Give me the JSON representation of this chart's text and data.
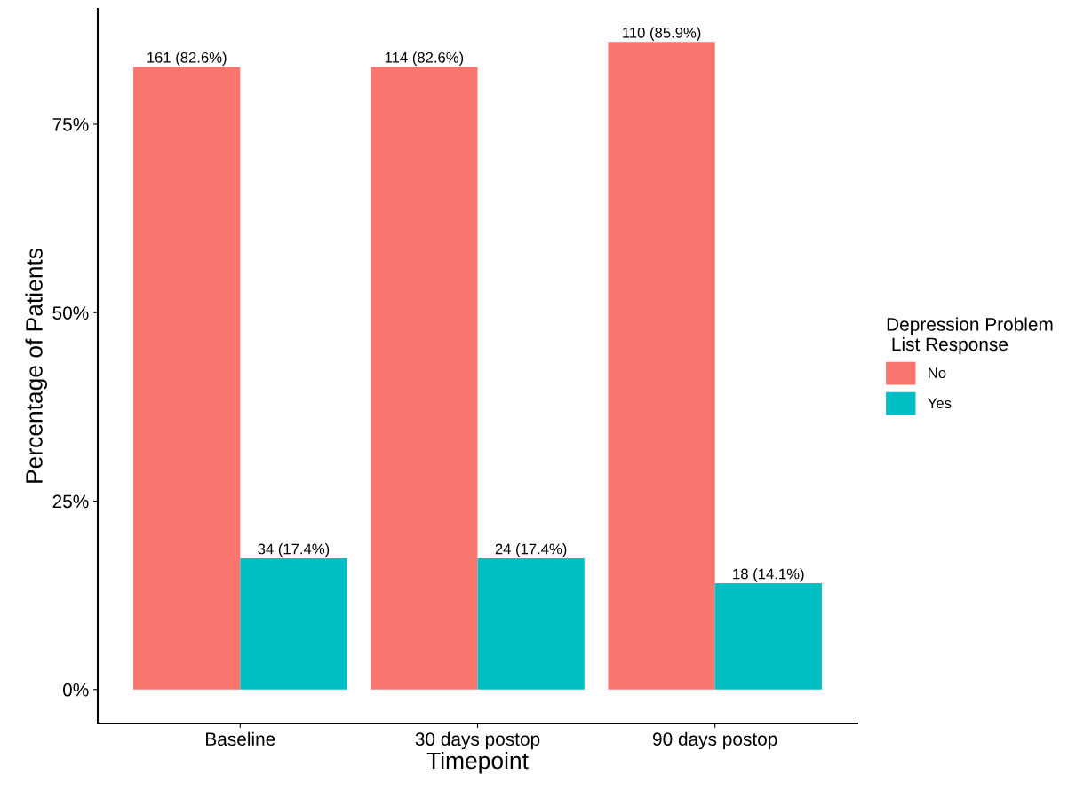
{
  "chart_data": {
    "type": "bar",
    "xlabel": "Timepoint",
    "ylabel": "Percentage of Patients",
    "legend_title": "Depression Problem\n List Response",
    "categories": [
      "Baseline",
      "30 days postop",
      "90 days postop"
    ],
    "series": [
      {
        "name": "No",
        "color": "#f8766d",
        "values": [
          82.6,
          82.6,
          85.9
        ],
        "value_labels": [
          "161 (82.6%)",
          "114 (82.6%)",
          "110 (85.9%)"
        ]
      },
      {
        "name": "Yes",
        "color": "#00bfc4",
        "values": [
          17.4,
          17.4,
          14.1
        ],
        "value_labels": [
          "34 (17.4%)",
          "24 (17.4%)",
          "18 (14.1%)"
        ]
      }
    ],
    "ylim": [
      -4.5,
      90.3
    ],
    "yticks": [
      {
        "value": 0,
        "label": "0%"
      },
      {
        "value": 25,
        "label": "25%"
      },
      {
        "value": 50,
        "label": "50%"
      },
      {
        "value": 75,
        "label": "75%"
      }
    ],
    "grid": false,
    "legend": "right"
  }
}
